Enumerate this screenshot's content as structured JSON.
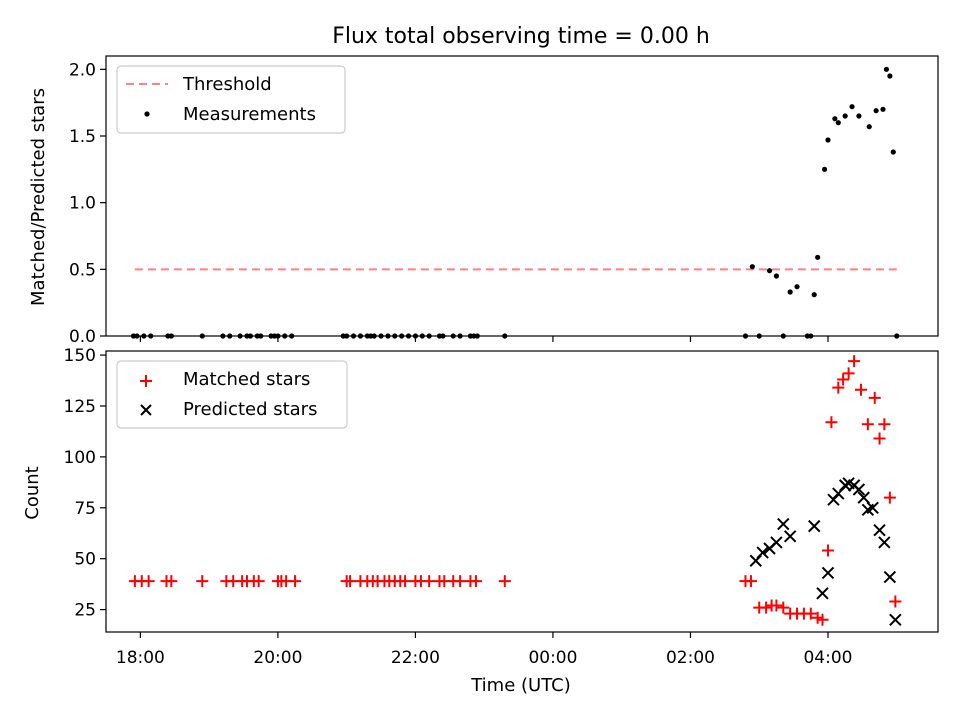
{
  "chart_data": [
    {
      "type": "scatter",
      "title": "Flux total observing time = 0.00 h",
      "ylabel": "Matched/Predicted stars",
      "ylim": [
        0,
        2.1
      ],
      "yticks": [
        "0.0",
        "0.5",
        "1.0",
        "1.5",
        "2.0"
      ],
      "xlim_hours": [
        17.5,
        29.6
      ],
      "threshold": {
        "name": "Threshold",
        "value": 0.5,
        "x_range": [
          17.92,
          29.0
        ],
        "color": "#ff8080"
      },
      "series": [
        {
          "name": "Measurements",
          "color": "#000000",
          "x": [
            17.9,
            17.95,
            18.05,
            18.15,
            18.4,
            18.45,
            18.9,
            19.2,
            19.3,
            19.45,
            19.55,
            19.6,
            19.7,
            19.75,
            19.9,
            19.95,
            20.0,
            20.1,
            20.2,
            20.95,
            21.0,
            21.1,
            21.2,
            21.3,
            21.35,
            21.4,
            21.5,
            21.6,
            21.7,
            21.8,
            21.9,
            22.0,
            22.1,
            22.2,
            22.35,
            22.4,
            22.55,
            22.65,
            22.8,
            22.85,
            22.9,
            23.3,
            26.8,
            26.9,
            27.0,
            27.15,
            27.25,
            27.35,
            27.45,
            27.55,
            27.7,
            27.75,
            27.8,
            27.85,
            27.95,
            28.0,
            28.1,
            28.15,
            28.25,
            28.35,
            28.45,
            28.6,
            28.7,
            28.8,
            28.85,
            28.9,
            28.95,
            29.0
          ],
          "y": [
            0,
            0,
            0,
            0,
            0,
            0,
            0,
            0,
            0,
            0,
            0,
            0,
            0,
            0,
            0,
            0,
            0,
            0,
            0,
            0,
            0,
            0,
            0,
            0,
            0,
            0,
            0,
            0,
            0,
            0,
            0,
            0,
            0,
            0,
            0,
            0,
            0,
            0,
            0,
            0,
            0,
            0,
            0,
            0.52,
            0,
            0.49,
            0.45,
            0,
            0.33,
            0.37,
            0,
            0,
            0.31,
            0.59,
            1.25,
            1.47,
            1.63,
            1.6,
            1.65,
            1.72,
            1.65,
            1.57,
            1.69,
            1.7,
            2.0,
            1.95,
            1.38,
            0
          ],
          "xs_note": "hours since 00:00 of first day"
        }
      ]
    },
    {
      "type": "scatter",
      "ylabel": "Count",
      "xlabel": "Time (UTC)",
      "ylim": [
        14,
        152
      ],
      "yticks": [
        "25",
        "50",
        "75",
        "100",
        "125",
        "150"
      ],
      "xticks": [
        "18:00",
        "20:00",
        "22:00",
        "00:00",
        "02:00",
        "04:00"
      ],
      "series": [
        {
          "name": "Matched stars",
          "color": "#ff0000",
          "marker": "plus",
          "x": [
            17.92,
            18.02,
            18.12,
            18.38,
            18.45,
            18.9,
            19.25,
            19.35,
            19.48,
            19.55,
            19.65,
            19.72,
            20.0,
            20.05,
            20.12,
            20.25,
            21.0,
            21.05,
            21.2,
            21.3,
            21.38,
            21.45,
            21.55,
            21.62,
            21.7,
            21.78,
            21.85,
            22.0,
            22.08,
            22.2,
            22.35,
            22.42,
            22.55,
            22.65,
            22.8,
            22.88,
            23.3,
            26.8,
            26.88,
            27.0,
            27.1,
            27.18,
            27.25,
            27.35,
            27.45,
            27.55,
            27.65,
            27.75,
            27.85,
            27.92,
            28.0,
            28.05,
            28.15,
            28.22,
            28.3,
            28.38,
            28.48,
            28.58,
            28.68,
            28.75,
            28.82,
            28.9,
            28.98
          ],
          "y": [
            39,
            39,
            39,
            39,
            39,
            39,
            39,
            39,
            39,
            39,
            39,
            39,
            39,
            39,
            39,
            39,
            39,
            39,
            39,
            39,
            39,
            39,
            39,
            39,
            39,
            39,
            39,
            39,
            39,
            39,
            39,
            39,
            39,
            39,
            39,
            39,
            39,
            39,
            39,
            26,
            26,
            27,
            27,
            26,
            23,
            23,
            23,
            23,
            21,
            20,
            54,
            117,
            134,
            138,
            141,
            147,
            133,
            116,
            129,
            109,
            116,
            80,
            29
          ]
        },
        {
          "name": "Predicted stars",
          "color": "#000000",
          "marker": "x",
          "x": [
            26.95,
            27.05,
            27.15,
            27.25,
            27.35,
            27.45,
            27.8,
            27.92,
            28.0,
            28.08,
            28.15,
            28.25,
            28.3,
            28.38,
            28.45,
            28.52,
            28.58,
            28.65,
            28.75,
            28.82,
            28.9,
            28.98
          ],
          "y": [
            49,
            53,
            55,
            58,
            67,
            61,
            66,
            33,
            43,
            79,
            82,
            86,
            87,
            86,
            84,
            80,
            74,
            75,
            64,
            58,
            41,
            20
          ]
        }
      ]
    }
  ],
  "legend_top": {
    "threshold": "Threshold",
    "measurements": "Measurements"
  },
  "legend_bottom": {
    "matched": "Matched stars",
    "predicted": "Predicted stars"
  }
}
